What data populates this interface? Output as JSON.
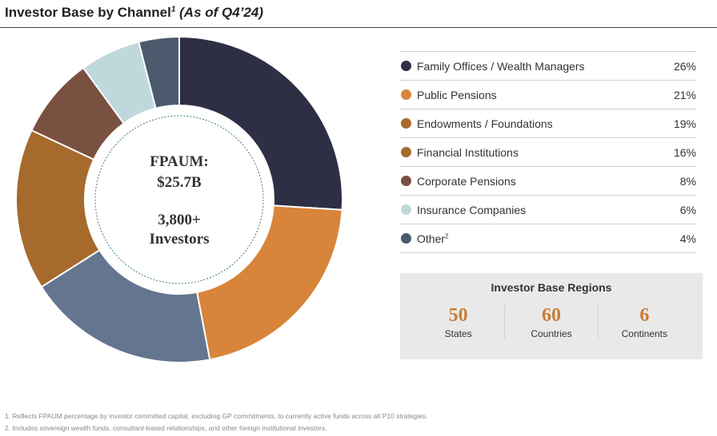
{
  "header": {
    "title": "Investor Base by Channel",
    "title_sup": "1",
    "subtitle": "(As of Q4’24)"
  },
  "center": {
    "line1": "FPAUM:",
    "line2": "$25.7B",
    "line3": "3,800+",
    "line4": "Investors"
  },
  "chart_data": {
    "type": "pie",
    "style": "donut",
    "categories": [
      "Family Offices / Wealth Managers",
      "Public Pensions",
      "Endowments / Foundations",
      "Financial Institutions",
      "Corporate Pensions",
      "Insurance Companies",
      "Other"
    ],
    "values": [
      26,
      21,
      19,
      16,
      8,
      6,
      4
    ],
    "legend_position": "right"
  },
  "legend": [
    {
      "label": "Family Offices / Wealth Managers",
      "sup": "",
      "value": "26%",
      "color": "#2e2e45"
    },
    {
      "label": "Public Pensions",
      "sup": "",
      "value": "21%",
      "color": "#d8843a"
    },
    {
      "label": "Endowments / Foundations",
      "sup": "",
      "value": "19%",
      "color": "#aa6a2a"
    },
    {
      "label": "Financial Institutions",
      "sup": "",
      "value": "16%",
      "color": "#a66a2c"
    },
    {
      "label": "Corporate Pensions",
      "sup": "",
      "value": "8%",
      "color": "#7a5040"
    },
    {
      "label": "Insurance Companies",
      "sup": "",
      "value": "6%",
      "color": "#bfd8dc"
    },
    {
      "label": "Other",
      "sup": "2",
      "value": "4%",
      "color": "#4c5a6e"
    }
  ],
  "slice_colors": [
    "#2e2e45",
    "#d8843a",
    "#63758f",
    "#a66a2c",
    "#7a5040",
    "#bfd8dc",
    "#4c5a6e"
  ],
  "regions": {
    "title": "Investor Base Regions",
    "items": [
      {
        "number": "50",
        "label": "States"
      },
      {
        "number": "60",
        "label": "Countries"
      },
      {
        "number": "6",
        "label": "Continents"
      }
    ]
  },
  "footnotes": [
    "1.  Reflects FPAUM percentage by investor committed capital, excluding GP commitments, to currently active funds across all P10 strategies.",
    "2.  Includes sovereign wealth funds, consultant-based relationships, and other foreign institutional investors."
  ]
}
